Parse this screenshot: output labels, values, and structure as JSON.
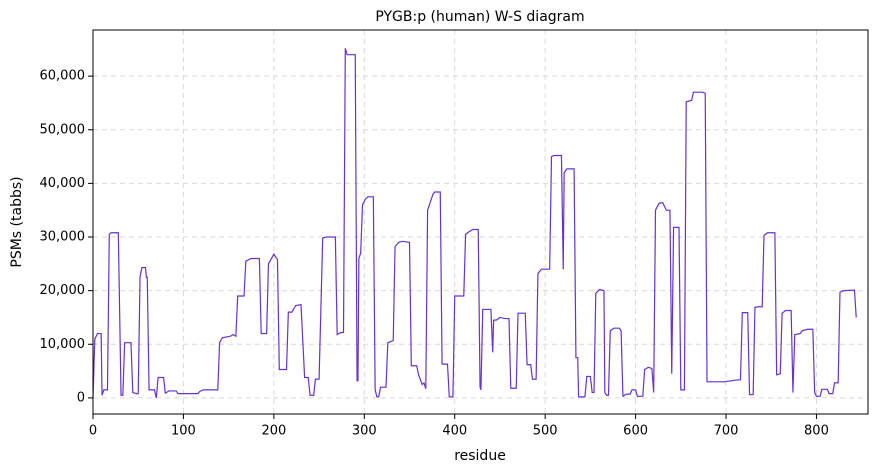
{
  "chart_data": {
    "type": "line",
    "title": "PYGB:p (human) W-S diagram",
    "x_label": "residue",
    "y_label": "PSMs (tabbs)",
    "color": "#6633cc",
    "grid": true,
    "xlim": [
      0,
      857
    ],
    "ylim": [
      -3000,
      68600
    ],
    "xticks": [
      0,
      100,
      200,
      300,
      400,
      500,
      600,
      700,
      800
    ],
    "yticks": [
      0,
      {
        "value": 10000,
        "label": "10,000"
      },
      {
        "value": 20000,
        "label": "20,000"
      },
      {
        "value": 30000,
        "label": "30,000"
      },
      {
        "value": 40000,
        "label": "40,000"
      },
      {
        "value": 50000,
        "label": "50,000"
      },
      {
        "value": 60000,
        "label": "60,000"
      }
    ],
    "x": [
      0,
      2,
      5,
      9,
      10,
      12,
      16,
      18,
      20,
      28,
      31,
      33,
      35,
      42,
      44,
      48,
      50,
      52,
      54,
      58,
      59,
      60,
      62,
      68,
      70,
      72,
      78,
      80,
      84,
      92,
      94,
      116,
      118,
      122,
      138,
      140,
      143,
      152,
      155,
      158,
      160,
      167,
      169,
      175,
      184,
      186,
      192,
      194,
      200,
      204,
      206,
      214,
      216,
      220,
      224,
      230,
      234,
      238,
      240,
      244,
      246,
      250,
      254,
      258,
      268,
      270,
      274,
      277,
      279,
      281,
      290,
      292,
      293,
      294,
      296,
      298,
      301,
      304,
      310,
      312,
      314,
      316,
      318,
      324,
      326,
      332,
      334,
      338,
      342,
      350,
      352,
      358,
      360,
      364,
      366,
      368,
      370,
      372,
      376,
      378,
      384,
      386,
      392,
      394,
      398,
      400,
      410,
      412,
      416,
      420,
      426,
      428,
      429,
      431,
      440,
      442,
      443,
      446,
      450,
      456,
      460,
      462,
      468,
      470,
      478,
      480,
      484,
      486,
      490,
      492,
      496,
      505,
      507,
      510,
      518,
      520,
      521,
      524,
      532,
      534,
      536,
      537,
      544,
      546,
      550,
      552,
      554,
      556,
      560,
      565,
      566,
      568,
      570,
      572,
      576,
      582,
      584,
      586,
      590,
      594,
      596,
      600,
      602,
      608,
      610,
      614,
      618,
      620,
      622,
      626,
      630,
      634,
      638,
      640,
      642,
      648,
      650,
      654,
      656,
      662,
      664,
      674,
      677,
      679,
      698,
      710,
      716,
      718,
      724,
      726,
      730,
      732,
      736,
      740,
      742,
      746,
      754,
      756,
      760,
      762,
      766,
      772,
      774,
      776,
      782,
      784,
      790,
      796,
      798,
      800,
      804,
      806,
      812,
      814,
      818,
      820,
      824,
      826,
      830,
      842,
      844
    ],
    "values": [
      0,
      11000,
      12000,
      12000,
      500,
      1500,
      1500,
      30500,
      30800,
      30800,
      500,
      500,
      10300,
      10300,
      1000,
      800,
      800,
      22500,
      24300,
      24300,
      22500,
      22500,
      1500,
      1500,
      0,
      3800,
      3800,
      900,
      1300,
      1300,
      800,
      800,
      1200,
      1500,
      1500,
      10300,
      11200,
      11500,
      11800,
      11500,
      19000,
      19000,
      25500,
      26000,
      26000,
      12000,
      12000,
      25000,
      26800,
      25800,
      5300,
      5300,
      16000,
      16000,
      17200,
      17400,
      3800,
      3800,
      500,
      500,
      3500,
      3500,
      29800,
      30000,
      30000,
      11800,
      12200,
      12200,
      65200,
      64000,
      64000,
      3200,
      3200,
      26000,
      27000,
      36000,
      37000,
      37500,
      37500,
      1500,
      200,
      200,
      2000,
      2000,
      10300,
      10700,
      28200,
      29000,
      29200,
      29000,
      6000,
      6000,
      4300,
      2500,
      2800,
      1700,
      35000,
      36000,
      38000,
      38400,
      38400,
      6300,
      6300,
      200,
      200,
      19000,
      19000,
      30500,
      31000,
      31400,
      31400,
      2000,
      1500,
      16500,
      16500,
      8500,
      14500,
      14500,
      15000,
      14800,
      14800,
      1800,
      1800,
      15800,
      15800,
      6200,
      6200,
      3500,
      3500,
      23200,
      24000,
      24000,
      45000,
      45200,
      45200,
      24000,
      42000,
      42700,
      42700,
      7500,
      7500,
      200,
      200,
      4000,
      4000,
      1000,
      1000,
      19500,
      20200,
      20000,
      1000,
      500,
      500,
      12500,
      13000,
      13000,
      12500,
      300,
      700,
      700,
      1500,
      1500,
      300,
      300,
      5300,
      5700,
      5500,
      1000,
      35000,
      36300,
      36400,
      35000,
      35000,
      4500,
      31800,
      31800,
      1500,
      1500,
      55200,
      55500,
      57000,
      57000,
      56800,
      3000,
      3000,
      3300,
      3400,
      15900,
      15900,
      600,
      600,
      16900,
      17000,
      17000,
      30300,
      30800,
      30800,
      4300,
      4500,
      15800,
      16300,
      16300,
      1000,
      11800,
      12000,
      12500,
      12800,
      12800,
      1000,
      300,
      300,
      1600,
      1600,
      800,
      800,
      2800,
      2800,
      19700,
      20000,
      20100,
      15000
    ]
  }
}
